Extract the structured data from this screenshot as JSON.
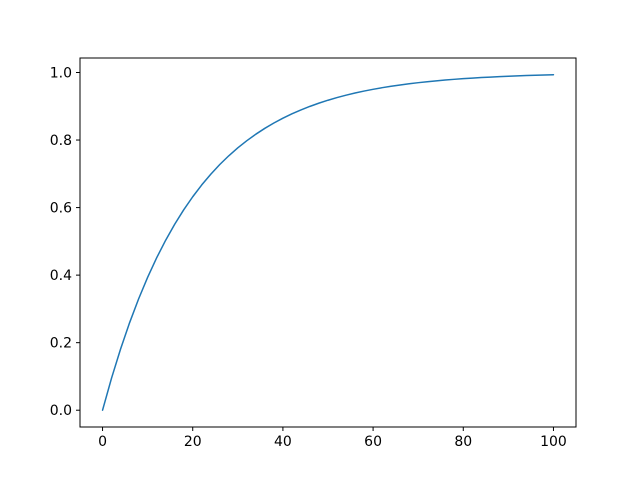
{
  "chart_data": {
    "type": "line",
    "title": "",
    "xlabel": "",
    "ylabel": "",
    "grid": false,
    "legend_position": "none",
    "background_color": "#ffffff",
    "spine_color": "#000000",
    "tick_color": "#000000",
    "line_color": "#1f77b4",
    "line_width": 1.5,
    "xlim": [
      -5,
      105
    ],
    "ylim": [
      -0.0497,
      1.0429
    ],
    "x_tick_labels": [
      "0",
      "20",
      "40",
      "60",
      "80",
      "100"
    ],
    "x_tick_values": [
      0,
      20,
      40,
      60,
      80,
      100
    ],
    "y_tick_labels": [
      "0.0",
      "0.2",
      "0.4",
      "0.6",
      "0.8",
      "1.0"
    ],
    "y_tick_values": [
      0.0,
      0.2,
      0.4,
      0.6,
      0.8,
      1.0
    ],
    "series": [
      {
        "name": "exponential-saturation-curve",
        "x": [
          0,
          2,
          4,
          6,
          8,
          10,
          12,
          14,
          16,
          18,
          20,
          22,
          24,
          26,
          28,
          30,
          32,
          34,
          36,
          38,
          40,
          42,
          44,
          46,
          48,
          50,
          52,
          54,
          56,
          58,
          60,
          62,
          64,
          66,
          68,
          70,
          72,
          74,
          76,
          78,
          80,
          82,
          84,
          86,
          88,
          90,
          92,
          94,
          96,
          98,
          100
        ],
        "y": [
          0.0,
          0.0952,
          0.1813,
          0.2592,
          0.3297,
          0.3935,
          0.4512,
          0.5034,
          0.5507,
          0.5934,
          0.6321,
          0.6671,
          0.6988,
          0.7275,
          0.7534,
          0.7769,
          0.7981,
          0.8173,
          0.8347,
          0.8504,
          0.8647,
          0.8775,
          0.8892,
          0.8997,
          0.9093,
          0.9179,
          0.9257,
          0.9328,
          0.9392,
          0.945,
          0.9502,
          0.955,
          0.9592,
          0.9631,
          0.9666,
          0.9698,
          0.9727,
          0.9753,
          0.9776,
          0.9798,
          0.9817,
          0.9834,
          0.985,
          0.9864,
          0.9877,
          0.9889,
          0.9899,
          0.9909,
          0.9918,
          0.9926,
          0.9933
        ]
      }
    ]
  }
}
